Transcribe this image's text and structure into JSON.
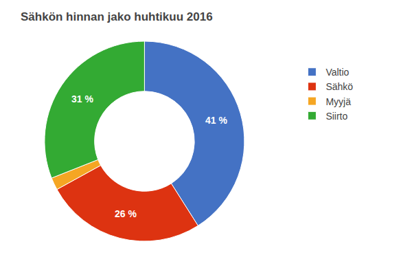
{
  "chart_data": {
    "type": "pie",
    "title": "Sähkön hinnan jako huhtikuu 2016",
    "categories": [
      "Valtio",
      "Sähkö",
      "Myyjä",
      "Siirto"
    ],
    "values": [
      41,
      26,
      2,
      31
    ],
    "colors": [
      "#4472c4",
      "#dd3311",
      "#f5a623",
      "#33aa33"
    ],
    "data_labels": true,
    "value_labels": [
      "41 %",
      "26 %",
      null,
      "31 %"
    ],
    "legend": "right"
  }
}
